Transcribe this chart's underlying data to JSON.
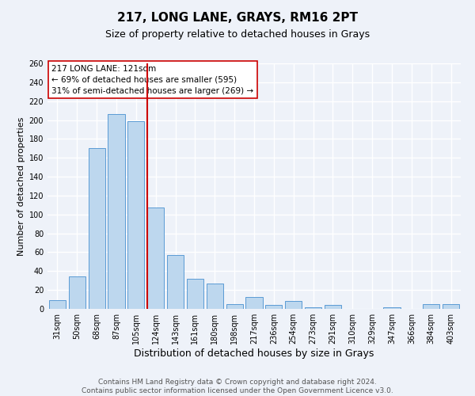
{
  "title": "217, LONG LANE, GRAYS, RM16 2PT",
  "subtitle": "Size of property relative to detached houses in Grays",
  "xlabel": "Distribution of detached houses by size in Grays",
  "ylabel": "Number of detached properties",
  "categories": [
    "31sqm",
    "50sqm",
    "68sqm",
    "87sqm",
    "105sqm",
    "124sqm",
    "143sqm",
    "161sqm",
    "180sqm",
    "198sqm",
    "217sqm",
    "236sqm",
    "254sqm",
    "273sqm",
    "291sqm",
    "310sqm",
    "329sqm",
    "347sqm",
    "366sqm",
    "384sqm",
    "403sqm"
  ],
  "values": [
    9,
    34,
    170,
    206,
    199,
    107,
    57,
    32,
    27,
    5,
    13,
    4,
    8,
    2,
    4,
    0,
    0,
    2,
    0,
    5,
    5
  ],
  "bar_color": "#bdd7ee",
  "bar_edge_color": "#5b9bd5",
  "vline_color": "#cc0000",
  "ylim": [
    0,
    260
  ],
  "yticks": [
    0,
    20,
    40,
    60,
    80,
    100,
    120,
    140,
    160,
    180,
    200,
    220,
    240,
    260
  ],
  "annotation_text": "217 LONG LANE: 121sqm\n← 69% of detached houses are smaller (595)\n31% of semi-detached houses are larger (269) →",
  "annotation_box_color": "#ffffff",
  "annotation_box_edge": "#cc0000",
  "footer_text": "Contains HM Land Registry data © Crown copyright and database right 2024.\nContains public sector information licensed under the Open Government Licence v3.0.",
  "background_color": "#eef2f9",
  "grid_color": "#ffffff",
  "title_fontsize": 11,
  "subtitle_fontsize": 9,
  "xlabel_fontsize": 9,
  "ylabel_fontsize": 8,
  "tick_fontsize": 7,
  "annotation_fontsize": 7.5,
  "footer_fontsize": 6.5
}
